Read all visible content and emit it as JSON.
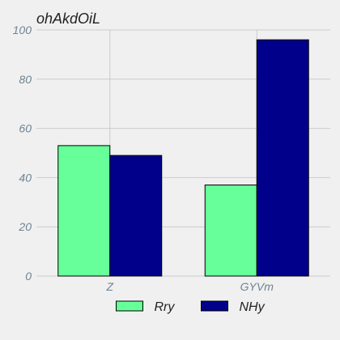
{
  "chart_data": {
    "type": "bar",
    "title": "ohAkdOiL",
    "xlabel": "",
    "ylabel": "",
    "categories": [
      "Z",
      "GYVm"
    ],
    "series": [
      {
        "name": "Rry",
        "values": [
          53,
          37
        ],
        "color": "#66ff99"
      },
      {
        "name": "NHy",
        "values": [
          49,
          96
        ],
        "color": "#00008b"
      }
    ],
    "ylim": [
      0,
      100
    ],
    "yticks": [
      0,
      20,
      40,
      60,
      80,
      100
    ],
    "grid": true,
    "legend_placement": "bottom-center",
    "colors": {
      "background": "#f0f0f0",
      "grid": "#cbcbcb",
      "tick_text": "#6f8391",
      "bar_edge": "#000000"
    }
  }
}
